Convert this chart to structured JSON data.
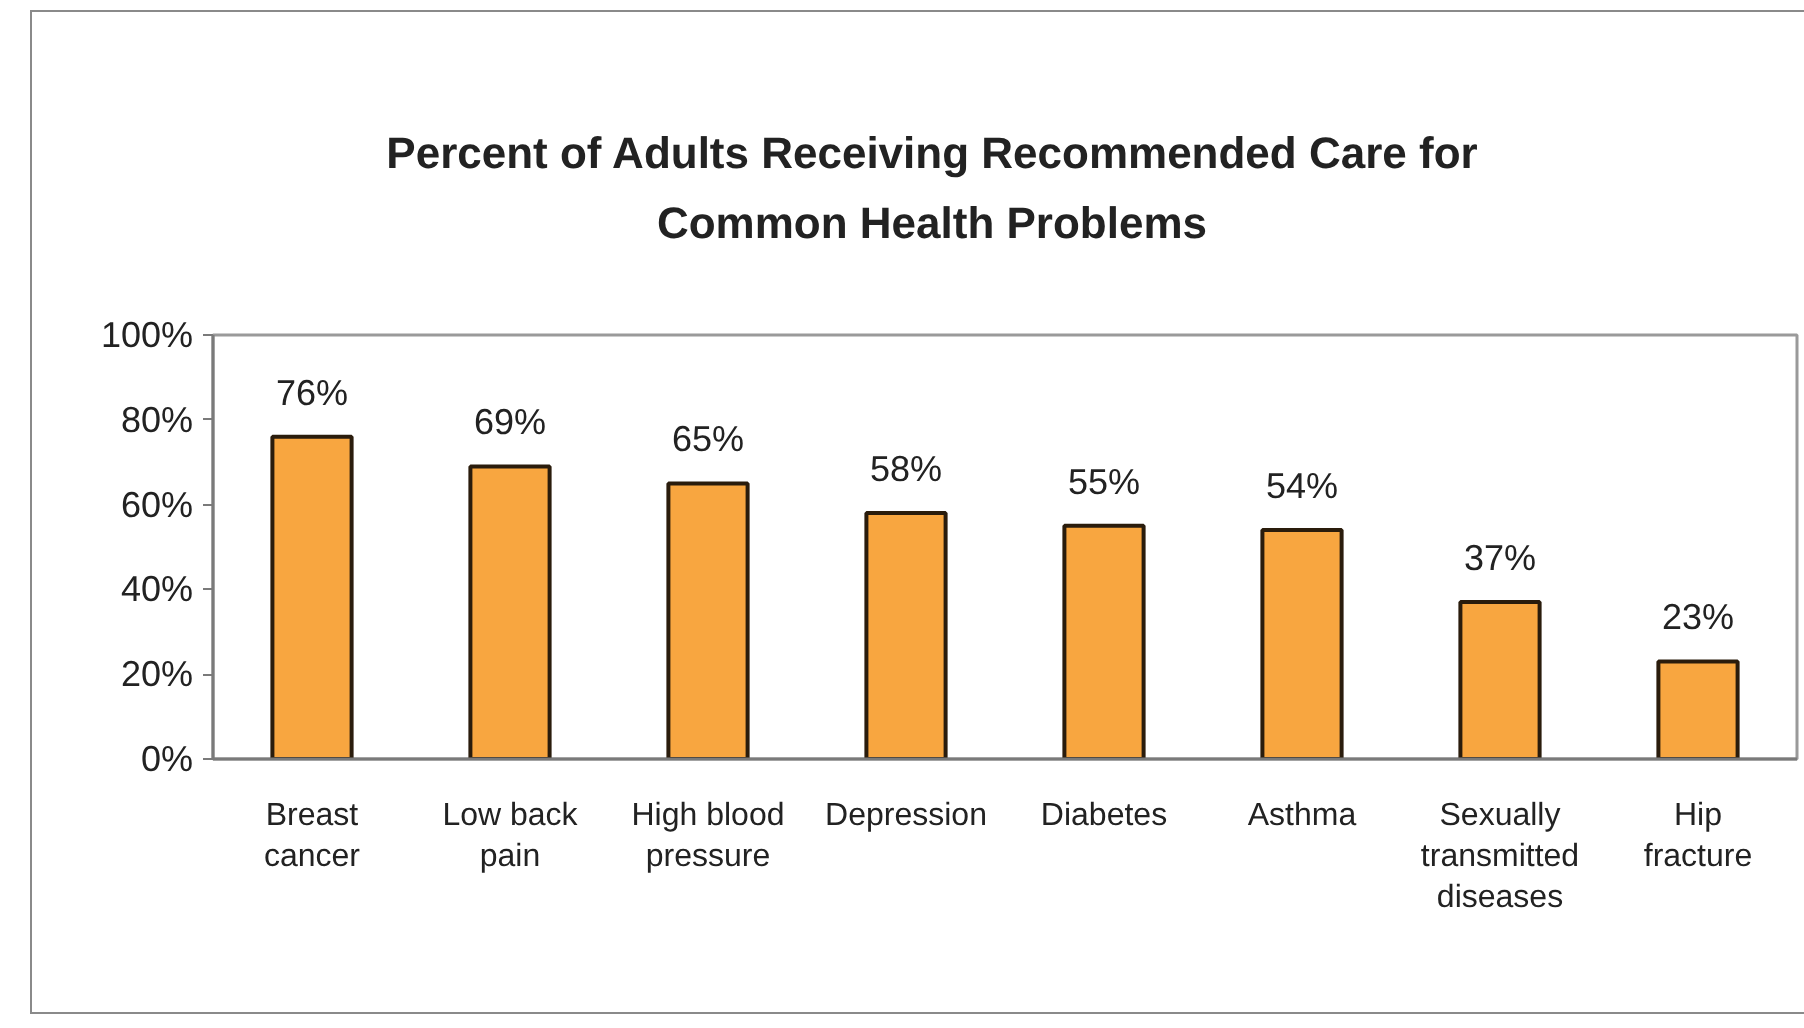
{
  "chart_data": {
    "type": "bar",
    "title": "Percent of Adults Receiving Recommended Care for Common Health Problems",
    "categories": [
      "Breast cancer",
      "Low back pain",
      "High blood pressure",
      "Depression",
      "Diabetes",
      "Asthma",
      "Sexually transmitted diseases",
      "Hip fracture"
    ],
    "values": [
      76,
      69,
      65,
      58,
      55,
      54,
      37,
      23
    ],
    "value_labels": [
      "76%",
      "69%",
      "65%",
      "58%",
      "55%",
      "54%",
      "37%",
      "23%"
    ],
    "color": "#f8a640",
    "ylim": [
      0,
      100
    ],
    "yticks": [
      {
        "value": 0,
        "label": "0%"
      },
      {
        "value": 20,
        "label": "20%"
      },
      {
        "value": 40,
        "label": "40%"
      },
      {
        "value": 60,
        "label": "60%"
      },
      {
        "value": 80,
        "label": "80%"
      },
      {
        "value": 100,
        "label": "100%"
      }
    ]
  }
}
